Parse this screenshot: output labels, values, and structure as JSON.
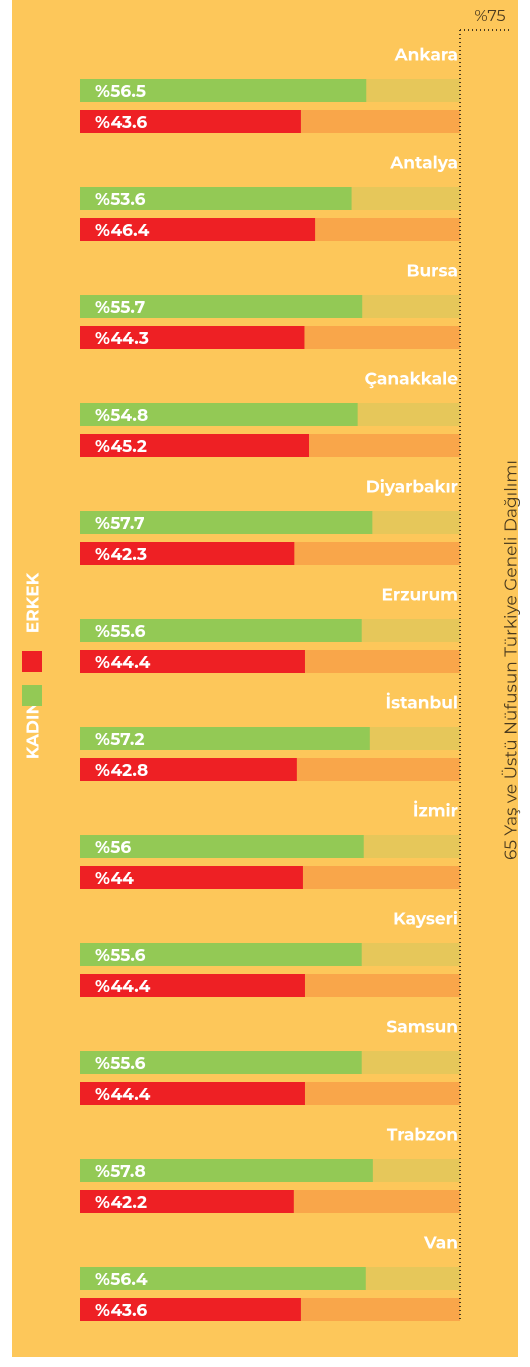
{
  "chart_data": {
    "type": "bar",
    "orientation": "horizontal",
    "title": "65 Yaş ve Üstü Nüfusun Türkiye Geneli Dağılımı",
    "categories": [
      "Ankara",
      "Antalya",
      "Bursa",
      "Çanakkale",
      "Diyarbakır",
      "Erzurum",
      "İstanbul",
      "İzmir",
      "Kayseri",
      "Samsun",
      "Trabzon",
      "Van"
    ],
    "series": [
      {
        "name": "KADIN",
        "color": "#93c955",
        "track_color": "#e6c75a",
        "values": [
          56.5,
          53.6,
          55.7,
          54.8,
          57.7,
          55.6,
          57.2,
          56,
          55.6,
          55.6,
          57.8,
          56.4
        ],
        "value_labels": [
          "%56.5",
          "%53.6",
          "%55.7",
          "%54.8",
          "%57.7",
          "%55.6",
          "%57.2",
          "%56",
          "%55.6",
          "%55.6",
          "%57.8",
          "%56.4"
        ]
      },
      {
        "name": "ERKEK",
        "color": "#ee2024",
        "track_color": "#f9a64a",
        "values": [
          43.6,
          46.4,
          44.3,
          45.2,
          42.3,
          44.4,
          42.8,
          44,
          44.4,
          44.4,
          42.2,
          43.6
        ],
        "value_labels": [
          "%43.6",
          "%46.4",
          "%44.3",
          "%45.2",
          "%42.3",
          "%44.4",
          "%42.8",
          "%44",
          "%44.4",
          "%44.4",
          "%42.2",
          "%43.6"
        ]
      }
    ],
    "xlim": [
      0,
      75
    ],
    "xticks": [
      {
        "value": 75,
        "label": "%75"
      }
    ]
  }
}
